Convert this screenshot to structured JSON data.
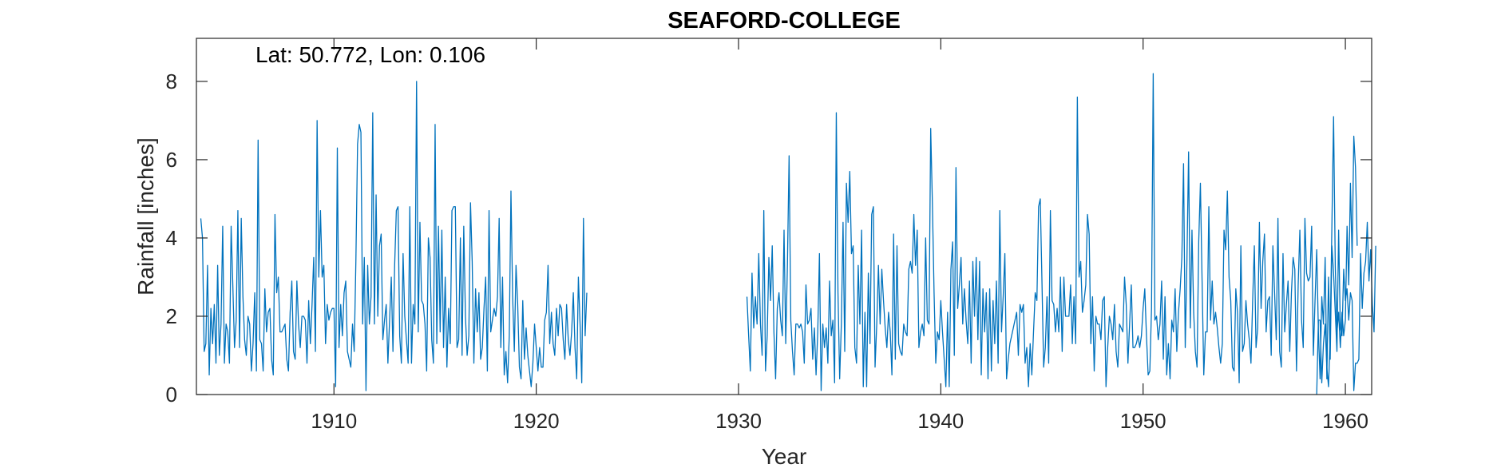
{
  "chart_data": {
    "type": "line",
    "title": "SEAFORD-COLLEGE",
    "annotation": "Lat: 50.772, Lon: 0.106",
    "xlabel": "Year",
    "ylabel": "Rainfall [inches]",
    "xlim": [
      1903.2,
      1961.3
    ],
    "ylim": [
      0,
      9.1
    ],
    "xticks": [
      1910,
      1920,
      1930,
      1940,
      1950,
      1960
    ],
    "xtick_labels": [
      "1910",
      "1920",
      "1930",
      "1940",
      "1950",
      "1960"
    ],
    "yticks": [
      0,
      2,
      4,
      6,
      8
    ],
    "ytick_labels": [
      "0",
      "2",
      "4",
      "6",
      "8"
    ],
    "grid": false,
    "line_color": "#0072BD",
    "series": [
      {
        "segments": [
          {
            "start": [
              1903,
              6
            ],
            "values": [
              4.5,
              4.0,
              1.1,
              1.3,
              3.3,
              0.5,
              2.2,
              1.3,
              2.3,
              0.8,
              3.3,
              1.0,
              1.8,
              4.3,
              0.8,
              1.8,
              1.6,
              0.8,
              4.3,
              2.8,
              1.2,
              1.9,
              4.7,
              1.2,
              4.5,
              2.5,
              1.4,
              1.0,
              2.0,
              1.8,
              0.6,
              1.3,
              2.6,
              0.6,
              6.5,
              1.4,
              1.3,
              0.6,
              2.7,
              1.6,
              2.1,
              2.2,
              0.9,
              0.5,
              4.6,
              2.6,
              3.0,
              1.6,
              1.6,
              1.7,
              1.8,
              0.9,
              0.6,
              2.1,
              2.9,
              1.1,
              0.9,
              2.9,
              1.8,
              1.2,
              2.0,
              2.0,
              1.9,
              0.8,
              2.4,
              1.3,
              2.3,
              3.5,
              1.1,
              7.0,
              3.0,
              4.7,
              3.0,
              3.3,
              1.3,
              2.3,
              1.9,
              2.1,
              2.2,
              2.2,
              0.2,
              6.3,
              1.2,
              2.3,
              1.5,
              2.6,
              2.9,
              1.1,
              0.9,
              0.7,
              1.8,
              1.1,
              3.4,
              6.4,
              6.9,
              6.7,
              1.8,
              3.5,
              0.1,
              3.3,
              1.8,
              2.5,
              7.2,
              1.8,
              5.1,
              2.0,
              3.8,
              4.1,
              1.4,
              1.9,
              2.3,
              0.8,
              1.9,
              3.0,
              1.1,
              3.3,
              4.7,
              4.8,
              1.5,
              0.8,
              3.6,
              2.0,
              1.4,
              0.8,
              4.8,
              0.8,
              2.3,
              1.8,
              8.0,
              1.6,
              4.4,
              2.4,
              2.3,
              1.8,
              0.6,
              4.0,
              3.5,
              1.4,
              0.8,
              6.9,
              1.3,
              4.3,
              1.6,
              4.2,
              1.2,
              3.0,
              0.7,
              2.2,
              1.3,
              4.7,
              4.8,
              4.8,
              1.2,
              1.4,
              4.0,
              1.0,
              4.3,
              2.0,
              1.0,
              1.5,
              4.9,
              3.4,
              0.8,
              2.7,
              1.6,
              2.6,
              0.9,
              1.2,
              2.2,
              3.0,
              0.6,
              4.7,
              1.6,
              1.9,
              2.2,
              2.0,
              2.5,
              4.5,
              1.2,
              3.0,
              0.5,
              1.1,
              0.3,
              1.5,
              5.2,
              2.5,
              1.1,
              3.3,
              2.3,
              0.7,
              0.4,
              2.4,
              0.9,
              1.7,
              1.0,
              0.6,
              0.2,
              0.8,
              1.8,
              1.2,
              0.6,
              1.2,
              0.7,
              0.7,
              1.9,
              2.1,
              3.3,
              1.3,
              2.1,
              1.3,
              1.0,
              2.2,
              1.5,
              2.3,
              2.2,
              1.4,
              0.9,
              2.3,
              1.4,
              1.0,
              1.6,
              2.6,
              1.2,
              0.4,
              3.0,
              1.8,
              0.3,
              4.5,
              1.5,
              2.6
            ]
          },
          {
            "start": [
              1930,
              6
            ],
            "values": [
              2.5,
              1.5,
              0.6,
              3.1,
              1.7,
              2.5,
              1.8,
              3.6,
              1.8,
              1.0,
              4.7,
              0.6,
              1.5,
              3.5,
              2.4,
              3.8,
              1.6,
              0.4,
              2.2,
              2.6,
              1.9,
              1.5,
              4.2,
              1.3,
              3.3,
              6.1,
              1.9,
              1.1,
              0.5,
              1.8,
              1.8,
              1.7,
              1.8,
              1.6,
              0.8,
              2.8,
              1.8,
              1.9,
              2.2,
              0.9,
              1.7,
              0.5,
              1.6,
              3.6,
              0.1,
              1.8,
              1.2,
              1.7,
              0.8,
              2.9,
              1.5,
              1.9,
              0.3,
              7.2,
              2.6,
              0.4,
              1.8,
              4.4,
              1.1,
              5.4,
              4.4,
              5.7,
              3.6,
              3.8,
              1.2,
              0.8,
              3.3,
              1.8,
              4.2,
              0.2,
              2.1,
              0.2,
              3.1,
              1.3,
              4.6,
              4.8,
              0.7,
              1.8,
              3.3,
              1.8,
              3.2,
              2.4,
              1.7,
              1.2,
              2.1,
              1.6,
              0.5,
              4.1,
              0.9,
              3.8,
              1.3,
              1.1,
              1.0,
              1.8,
              1.6,
              1.5,
              3.2,
              3.4,
              3.1,
              4.6,
              3.3,
              4.2,
              1.2,
              1.6,
              1.8,
              1.5,
              4.0,
              1.9,
              1.8,
              6.8,
              4.9,
              2.6,
              0.8,
              1.6,
              1.4,
              2.4,
              1.6,
              0.9,
              0.2,
              2.1,
              0.2,
              3.2,
              3.9,
              1.0,
              5.8,
              2.2,
              2.8,
              3.5,
              1.8,
              2.7,
              1.9,
              1.3,
              2.9,
              0.8,
              3.4,
              2.0,
              3.5,
              1.4,
              3.4,
              0.5,
              2.7,
              1.6,
              2.6,
              0.4,
              2.7,
              0.6,
              2.4,
              1.3,
              2.9,
              0.8,
              4.7,
              1.6,
              2.5,
              3.6,
              0.4,
              0.9,
              1.3,
              1.5,
              1.7,
              1.9,
              2.1,
              1.0,
              2.3,
              2.1,
              2.3,
              0.8,
              1.2,
              0.2,
              1.3,
              0.5,
              1.6,
              2.6,
              2.4,
              4.8,
              5.0,
              2.9,
              0.7,
              1.2,
              2.5,
              0.8,
              4.7,
              2.4,
              2.3,
              1.6,
              2.2,
              1.6,
              3.0,
              1.1,
              3.0,
              2.0,
              2.0,
              2.0,
              2.8,
              1.3,
              2.5,
              1.3,
              7.6,
              3.0,
              3.4,
              2.1,
              2.4,
              2.8,
              4.6,
              4.1,
              1.3,
              2.5,
              0.6,
              2.0,
              1.8,
              1.8,
              1.4,
              2.4,
              2.5,
              0.2,
              1.2,
              2.0,
              1.8,
              1.4,
              2.3,
              1.1,
              0.7,
              1.8,
              1.7,
              1.6,
              3.0,
              2.3,
              0.8,
              1.8,
              2.8,
              1.2,
              1.2,
              1.3,
              1.5,
              1.2,
              1.5,
              2.2,
              2.7,
              1.5,
              0.5,
              0.6,
              2.2,
              8.2,
              1.9,
              2.0,
              1.4,
              1.8,
              2.9,
              0.9,
              2.5,
              0.5,
              1.3,
              0.4,
              1.9,
              1.6,
              2.7,
              1.1,
              2.1,
              2.7,
              3.5,
              5.9,
              1.2,
              3.4,
              6.2,
              1.7,
              4.2,
              2.1,
              1.1,
              0.7,
              3.9,
              5.4,
              2.9,
              0.5,
              1.6,
              1.6,
              4.8,
              1.9,
              2.9,
              1.8,
              2.1,
              1.7,
              1.2,
              0.8,
              1.3,
              4.2,
              3.7,
              5.2,
              3.0,
              2.4,
              0.7,
              0.6,
              2.7,
              2.1,
              0.3,
              3.8,
              1.1,
              1.3,
              2.4,
              1.8,
              1.4,
              0.8,
              2.4,
              3.8,
              1.2,
              1.7,
              4.4,
              2.2,
              3.4,
              4.1,
              1.6,
              2.4,
              2.5,
              1.0,
              3.8,
              2.6,
              1.4,
              4.5,
              1.1,
              0.7,
              3.6,
              1.6,
              2.3,
              2.9,
              1.1,
              2.6,
              3.5,
              3.2,
              0.6,
              2.8,
              4.2,
              1.9,
              1.2,
              4.5,
              3.1,
              2.9,
              3.0,
              4.3,
              1.0,
              2.4,
              3.7,
              1.6,
              0.4,
              2.5,
              1.8,
              3.5,
              0.4,
              3.0,
              0.9,
              3.8,
              3.1,
              2.1,
              1.1,
              4.2,
              1.7,
              1.5,
              3.2,
              2.4,
              2.7,
              1.9,
              2.6,
              2.4,
              0.1,
              0.8,
              0.8,
              0.9,
              3.6,
              2.2,
              3.1,
              3.4,
              4.4,
              2.9,
              3.7,
              2.3,
              1.6,
              3.8
            ]
          },
          {
            "start": [
              1958,
              8
            ],
            "values": [
              0.0,
              1.9,
              1.9,
              0.3,
              1.3,
              1.8,
              0.7,
              0.2,
              1.5,
              4.3,
              7.1,
              3.3,
              1.6,
              2.1,
              1.2,
              2.1,
              1.5,
              1.9,
              4.3,
              2.8,
              5.4,
              3.5,
              6.6,
              5.8,
              3.8
            ]
          }
        ]
      }
    ]
  }
}
